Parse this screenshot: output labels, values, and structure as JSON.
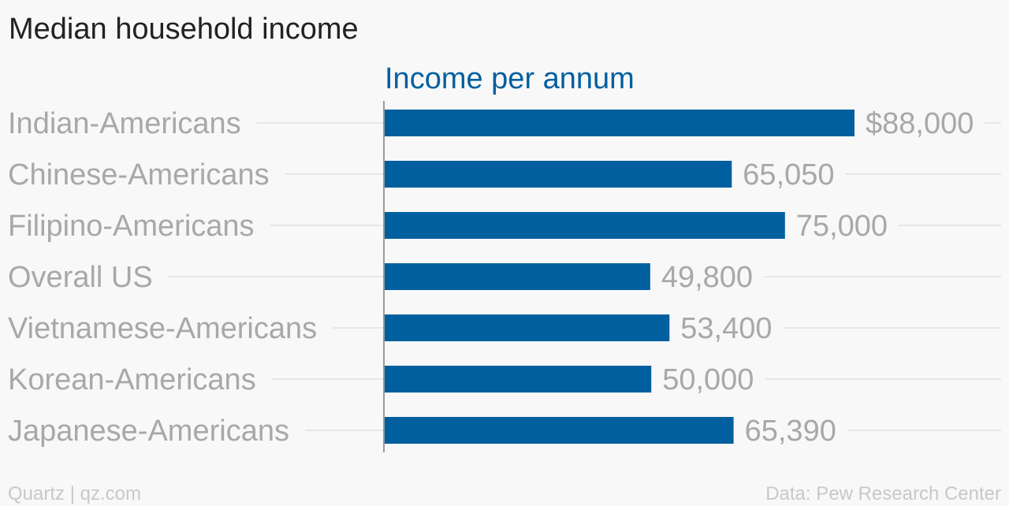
{
  "header": {
    "title": "Median household income"
  },
  "footer": {
    "credit": "Quartz | qz.com",
    "source": "Data: Pew Research Center"
  },
  "colors": {
    "bar": "#00609f",
    "series_label": "#00609f",
    "category_label": "#a8a8a8",
    "value_label": "#a8a8a8",
    "gridline": "#e6e6e6",
    "axis": "#9a9a9a"
  },
  "chart_data": {
    "type": "bar",
    "orientation": "horizontal",
    "categories": [
      "Indian-Americans",
      "Chinese-Americans",
      "Filipino-Americans",
      "Overall US",
      "Vietnamese-Americans",
      "Korean-Americans",
      "Japanese-Americans"
    ],
    "series": [
      {
        "name": "Income per annum",
        "values": [
          88000,
          65050,
          75000,
          49800,
          53400,
          50000,
          65390
        ],
        "labels": [
          "$88,000",
          "65,050",
          "75,000",
          "49,800",
          "53,400",
          "50,000",
          "65,390"
        ]
      }
    ],
    "title": "Median household income",
    "xlabel": "",
    "ylabel": "",
    "xlim": [
      0,
      88000
    ],
    "grid": true,
    "legend": "none"
  }
}
